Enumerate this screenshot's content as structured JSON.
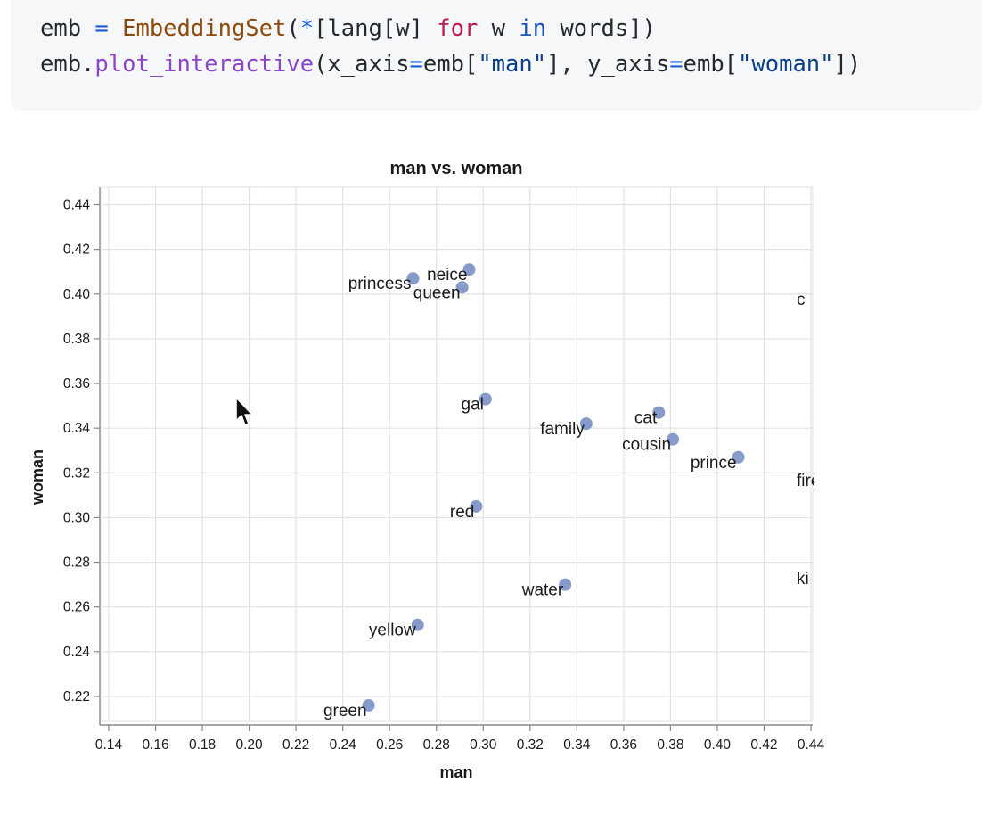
{
  "code": {
    "line1": {
      "var": "emb",
      "eq": " = ",
      "cls": "EmbeddingSet",
      "open": "(",
      "star": "*",
      "mid": "[lang[w] ",
      "kw_for": "for",
      "w": " w ",
      "kw_in": "in",
      "end": " words])"
    },
    "line2": {
      "obj": "emb.",
      "fn": "plot_interactive",
      "a": "(x_axis",
      "eq1": "=",
      "b": "emb[",
      "s1": "\"man\"",
      "c": "], y_axis",
      "eq2": "=",
      "d": "emb[",
      "s2": "\"woman\"",
      "e": "])"
    }
  },
  "colors": {
    "point": "#7f96c8",
    "grid": "#e2e2e2",
    "axis": "#888888",
    "text": "#1a1a1a"
  },
  "cursor_icon": "mouse-pointer-icon",
  "chart_data": {
    "type": "scatter",
    "title": "man vs. woman",
    "xlabel": "man",
    "ylabel": "woman",
    "xlim": [
      0.14,
      0.44
    ],
    "ylim": [
      0.21,
      0.445
    ],
    "x_ticks": [
      "0.14",
      "0.16",
      "0.18",
      "0.20",
      "0.22",
      "0.24",
      "0.26",
      "0.28",
      "0.30",
      "0.32",
      "0.34",
      "0.36",
      "0.38",
      "0.40",
      "0.42",
      "0.44"
    ],
    "y_ticks": [
      "0.22",
      "0.24",
      "0.26",
      "0.28",
      "0.30",
      "0.32",
      "0.34",
      "0.36",
      "0.38",
      "0.40",
      "0.42",
      "0.44"
    ],
    "grid": true,
    "points": [
      {
        "label": "princess",
        "x": 0.27,
        "y": 0.407
      },
      {
        "label": "neice",
        "x": 0.294,
        "y": 0.411
      },
      {
        "label": "queen",
        "x": 0.291,
        "y": 0.403
      },
      {
        "label": "gal",
        "x": 0.301,
        "y": 0.353
      },
      {
        "label": "family",
        "x": 0.344,
        "y": 0.342
      },
      {
        "label": "cat",
        "x": 0.375,
        "y": 0.347
      },
      {
        "label": "cousin",
        "x": 0.381,
        "y": 0.335
      },
      {
        "label": "prince",
        "x": 0.409,
        "y": 0.327
      },
      {
        "label": "red",
        "x": 0.297,
        "y": 0.305
      },
      {
        "label": "water",
        "x": 0.335,
        "y": 0.27
      },
      {
        "label": "yellow",
        "x": 0.272,
        "y": 0.252
      },
      {
        "label": "green",
        "x": 0.251,
        "y": 0.216
      }
    ],
    "clipped_labels": [
      {
        "label": "c",
        "y": 0.398
      },
      {
        "label": "fire",
        "y": 0.317
      },
      {
        "label": "ki",
        "y": 0.273
      }
    ]
  }
}
